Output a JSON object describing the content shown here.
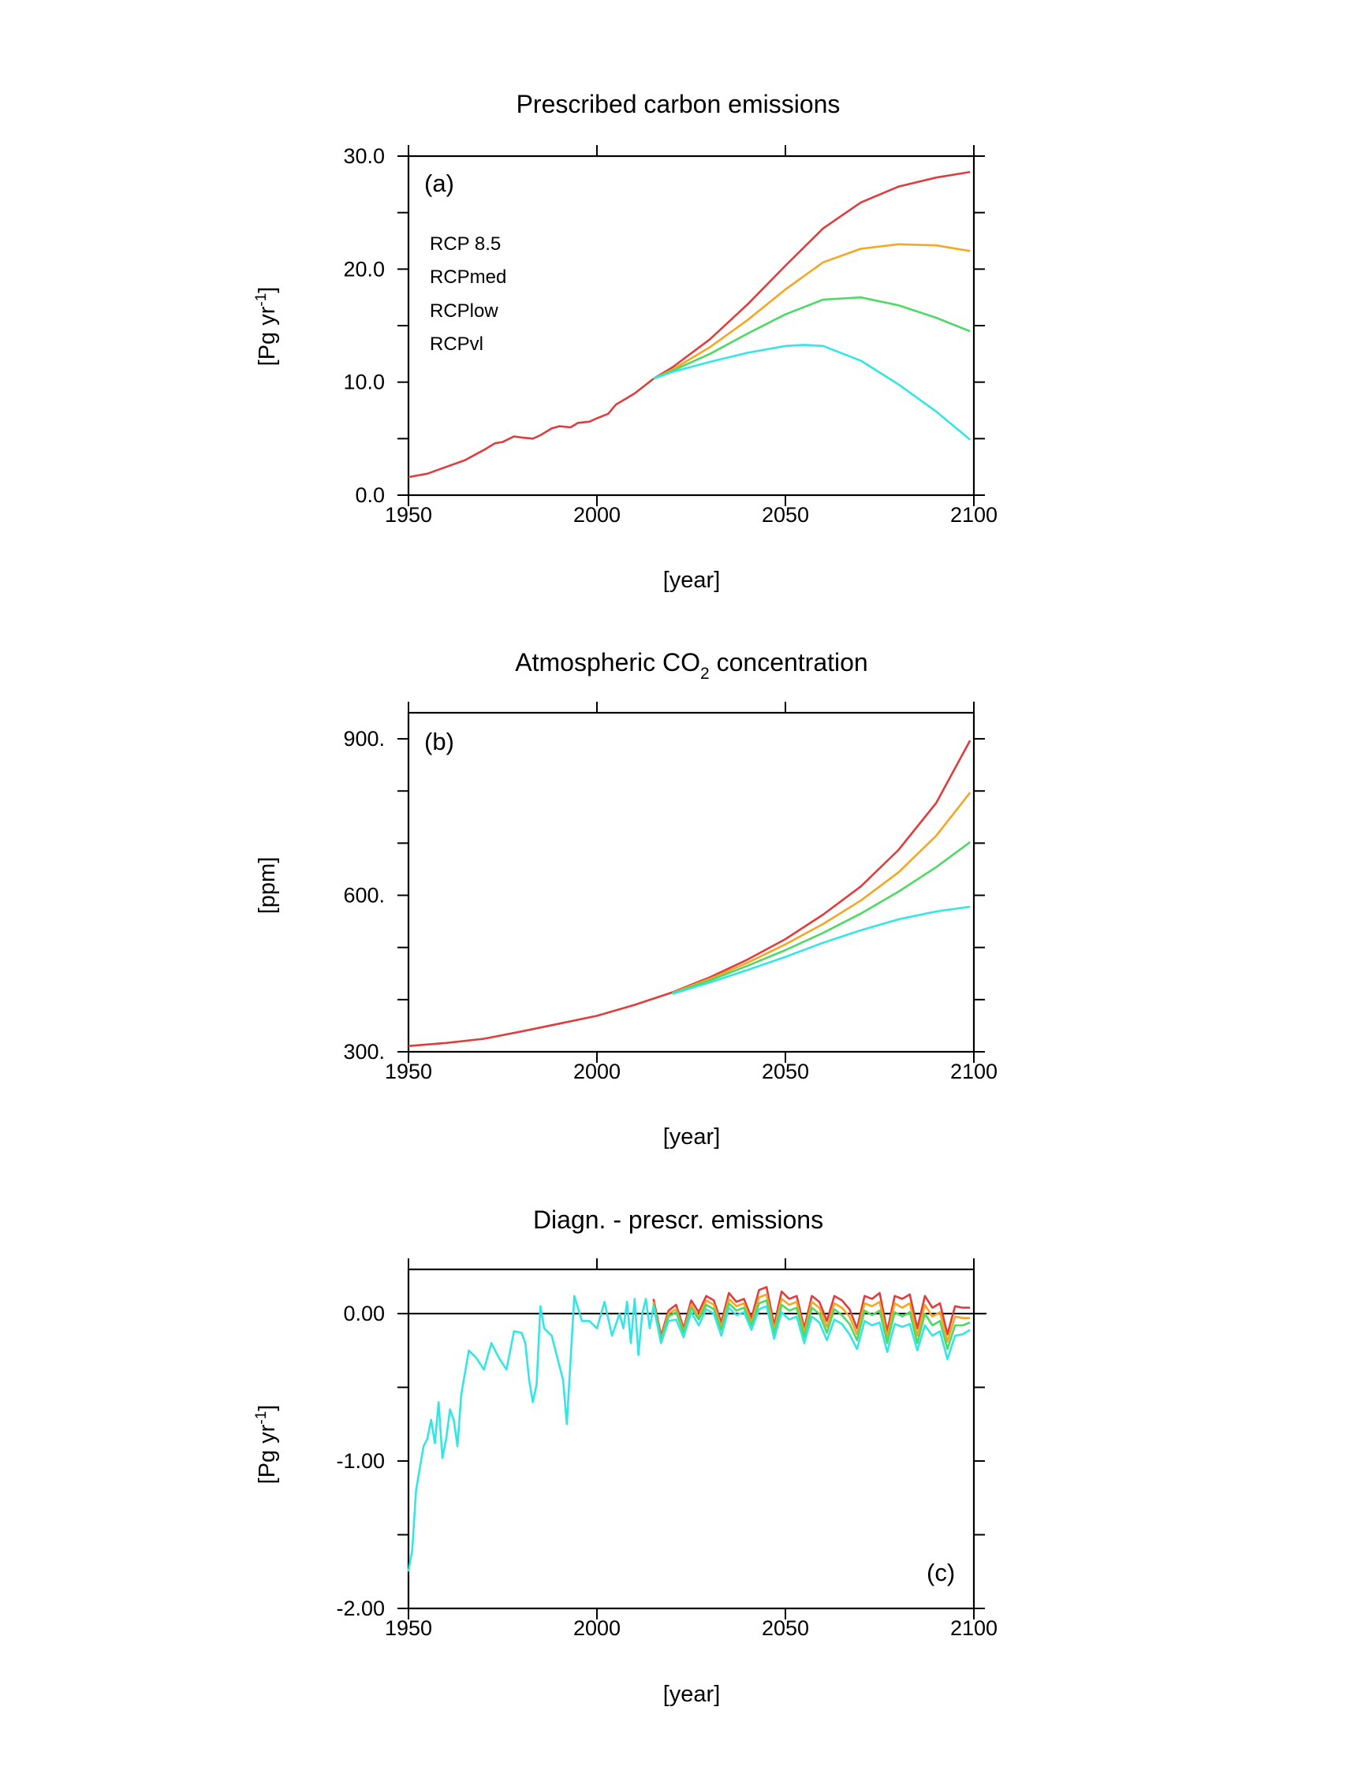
{
  "colors": {
    "rcp85": "#e03c3c",
    "rcpmed": "#f5a623",
    "rcplow": "#4cd964",
    "rcpvl": "#33e6e6",
    "frame": "#000000"
  },
  "chart_data": [
    {
      "type": "line",
      "title": "Prescribed carbon emissions",
      "panel_label": "(a)",
      "xlabel": "[year]",
      "ylabel": "[Pg yr-1]",
      "ylabel_parts": [
        "[Pg yr",
        "-1",
        "]"
      ],
      "xlim": [
        1950,
        2100
      ],
      "ylim": [
        0,
        30
      ],
      "xticks": [
        "1950",
        "2000",
        "2050",
        "2100"
      ],
      "yticks": [
        "0.0",
        "10.0",
        "20.0",
        "30.0"
      ],
      "ytick_values": [
        0,
        10,
        20,
        30
      ],
      "legend": {
        "position": "upper-left",
        "entries": [
          "RCP 8.5",
          "RCPmed",
          "RCPlow",
          "RCPvl"
        ]
      },
      "grid": false,
      "series": [
        {
          "name": "RCP 8.5",
          "x": [
            1950,
            1955,
            1960,
            1965,
            1970,
            1973,
            1975,
            1978,
            1980,
            1983,
            1985,
            1988,
            1990,
            1993,
            1995,
            1998,
            2000,
            2003,
            2005,
            2010,
            2015,
            2020,
            2030,
            2040,
            2050,
            2060,
            2070,
            2080,
            2090,
            2099
          ],
          "y": [
            1.6,
            1.9,
            2.5,
            3.1,
            4.0,
            4.6,
            4.7,
            5.2,
            5.1,
            5.0,
            5.3,
            5.9,
            6.1,
            6.0,
            6.4,
            6.5,
            6.8,
            7.2,
            8.0,
            9.0,
            10.3,
            11.3,
            13.8,
            16.9,
            20.3,
            23.6,
            25.9,
            27.3,
            28.1,
            28.6
          ]
        },
        {
          "name": "RCPmed",
          "x": [
            2015,
            2020,
            2030,
            2040,
            2050,
            2060,
            2070,
            2080,
            2090,
            2099
          ],
          "y": [
            10.3,
            11.1,
            13.1,
            15.5,
            18.2,
            20.6,
            21.8,
            22.2,
            22.1,
            21.6
          ]
        },
        {
          "name": "RCPlow",
          "x": [
            2015,
            2020,
            2030,
            2040,
            2050,
            2060,
            2070,
            2080,
            2090,
            2099
          ],
          "y": [
            10.3,
            11.0,
            12.5,
            14.3,
            16.0,
            17.3,
            17.5,
            16.8,
            15.7,
            14.5
          ]
        },
        {
          "name": "RCPvl",
          "x": [
            2015,
            2020,
            2030,
            2040,
            2050,
            2055,
            2060,
            2070,
            2080,
            2090,
            2099
          ],
          "y": [
            10.3,
            10.9,
            11.8,
            12.6,
            13.2,
            13.3,
            13.2,
            11.9,
            9.8,
            7.4,
            4.9
          ]
        }
      ]
    },
    {
      "type": "line",
      "title": "Atmospheric CO2 concentration",
      "title_parts": [
        "Atmospheric CO",
        "2",
        " concentration"
      ],
      "panel_label": "(b)",
      "xlabel": "[year]",
      "ylabel": "[ppm]",
      "xlim": [
        1950,
        2100
      ],
      "ylim": [
        300,
        950
      ],
      "xticks": [
        "1950",
        "2000",
        "2050",
        "2100"
      ],
      "yticks": [
        "300.",
        "600.",
        "900."
      ],
      "ytick_values": [
        300,
        600,
        900
      ],
      "grid": false,
      "series": [
        {
          "name": "RCP 8.5",
          "x": [
            1950,
            1960,
            1970,
            1980,
            1990,
            2000,
            2010,
            2020,
            2030,
            2040,
            2050,
            2060,
            2070,
            2080,
            2090,
            2099
          ],
          "y": [
            311,
            317,
            325,
            339,
            354,
            369,
            390,
            414,
            443,
            477,
            516,
            563,
            617,
            687,
            777,
            897
          ]
        },
        {
          "name": "RCPmed",
          "x": [
            2020,
            2030,
            2040,
            2050,
            2060,
            2070,
            2080,
            2090,
            2099
          ],
          "y": [
            413,
            440,
            471,
            506,
            545,
            590,
            644,
            714,
            797
          ]
        },
        {
          "name": "RCPlow",
          "x": [
            2020,
            2030,
            2040,
            2050,
            2060,
            2070,
            2080,
            2090,
            2099
          ],
          "y": [
            412,
            437,
            465,
            495,
            528,
            565,
            607,
            654,
            702
          ]
        },
        {
          "name": "RCPvl",
          "x": [
            2020,
            2030,
            2040,
            2050,
            2060,
            2070,
            2080,
            2090,
            2099
          ],
          "y": [
            411,
            433,
            457,
            482,
            509,
            533,
            554,
            569,
            578
          ]
        }
      ]
    },
    {
      "type": "line",
      "title": "Diagn. - prescr. emissions",
      "panel_label": "(c)",
      "xlabel": "[year]",
      "ylabel": "[Pg yr-1]",
      "ylabel_parts": [
        "[Pg yr",
        "-1",
        "]"
      ],
      "xlim": [
        1950,
        2100
      ],
      "ylim": [
        -2.0,
        0.3
      ],
      "xticks": [
        "1950",
        "2000",
        "2050",
        "2100"
      ],
      "yticks": [
        "-2.00",
        "-1.00",
        "0.00"
      ],
      "ytick_values": [
        -2.0,
        -1.0,
        0.0
      ],
      "zero_line": true,
      "grid": false,
      "series": [
        {
          "name": "RCP 8.5",
          "x": [
            2015,
            2017,
            2019,
            2021,
            2023,
            2025,
            2027,
            2029,
            2031,
            2033,
            2035,
            2037,
            2039,
            2041,
            2043,
            2045,
            2047,
            2049,
            2051,
            2053,
            2055,
            2057,
            2059,
            2061,
            2063,
            2065,
            2067,
            2069,
            2071,
            2073,
            2075,
            2077,
            2079,
            2081,
            2083,
            2085,
            2087,
            2089,
            2091,
            2093,
            2095,
            2097,
            2099
          ],
          "y": [
            0.1,
            -0.15,
            0.02,
            0.06,
            -0.1,
            0.09,
            0.01,
            0.12,
            0.09,
            -0.06,
            0.14,
            0.08,
            0.1,
            -0.03,
            0.16,
            0.18,
            -0.08,
            0.15,
            0.1,
            0.12,
            -0.1,
            0.12,
            0.08,
            -0.05,
            0.12,
            0.09,
            0.03,
            -0.1,
            0.12,
            0.1,
            0.14,
            -0.12,
            0.12,
            0.1,
            0.13,
            -0.1,
            0.12,
            0.04,
            0.07,
            -0.14,
            0.05,
            0.04,
            0.04
          ]
        },
        {
          "name": "RCPmed",
          "x": [
            2015,
            2017,
            2019,
            2021,
            2023,
            2025,
            2027,
            2029,
            2031,
            2033,
            2035,
            2037,
            2039,
            2041,
            2043,
            2045,
            2047,
            2049,
            2051,
            2053,
            2055,
            2057,
            2059,
            2061,
            2063,
            2065,
            2067,
            2069,
            2071,
            2073,
            2075,
            2077,
            2079,
            2081,
            2083,
            2085,
            2087,
            2089,
            2091,
            2093,
            2095,
            2097,
            2099
          ],
          "y": [
            0.08,
            -0.17,
            0.0,
            0.03,
            -0.12,
            0.06,
            -0.02,
            0.09,
            0.06,
            -0.09,
            0.1,
            0.05,
            0.07,
            -0.06,
            0.11,
            0.13,
            -0.11,
            0.1,
            0.06,
            0.08,
            -0.13,
            0.08,
            0.04,
            -0.09,
            0.07,
            0.04,
            -0.02,
            -0.14,
            0.07,
            0.05,
            0.08,
            -0.16,
            0.07,
            0.04,
            0.07,
            -0.15,
            0.06,
            -0.02,
            0.01,
            -0.19,
            -0.02,
            -0.03,
            -0.03
          ]
        },
        {
          "name": "RCPlow",
          "x": [
            2015,
            2017,
            2019,
            2021,
            2023,
            2025,
            2027,
            2029,
            2031,
            2033,
            2035,
            2037,
            2039,
            2041,
            2043,
            2045,
            2047,
            2049,
            2051,
            2053,
            2055,
            2057,
            2059,
            2061,
            2063,
            2065,
            2067,
            2069,
            2071,
            2073,
            2075,
            2077,
            2079,
            2081,
            2083,
            2085,
            2087,
            2089,
            2091,
            2093,
            2095,
            2097,
            2099
          ],
          "y": [
            0.07,
            -0.18,
            -0.02,
            0.01,
            -0.13,
            0.04,
            -0.04,
            0.06,
            0.03,
            -0.11,
            0.07,
            0.02,
            0.04,
            -0.08,
            0.07,
            0.09,
            -0.14,
            0.06,
            0.02,
            0.04,
            -0.16,
            0.04,
            0.0,
            -0.13,
            0.03,
            -0.01,
            -0.07,
            -0.18,
            0.02,
            -0.01,
            0.02,
            -0.2,
            0.01,
            -0.02,
            0.01,
            -0.2,
            0.0,
            -0.08,
            -0.05,
            -0.24,
            -0.08,
            -0.08,
            -0.06
          ]
        },
        {
          "name": "RCPvl",
          "x": [
            1950,
            1951,
            1952,
            1953,
            1954,
            1955,
            1956,
            1957,
            1958,
            1959,
            1960,
            1961,
            1962,
            1963,
            1964,
            1966,
            1968,
            1970,
            1972,
            1974,
            1976,
            1978,
            1980,
            1981,
            1982,
            1983,
            1984,
            1985,
            1986,
            1988,
            1990,
            1991,
            1992,
            1994,
            1996,
            1998,
            2000,
            2002,
            2004,
            2006,
            2007,
            2008,
            2009,
            2010,
            2011,
            2012,
            2013,
            2014,
            2015,
            2017,
            2019,
            2021,
            2023,
            2025,
            2027,
            2029,
            2031,
            2033,
            2035,
            2037,
            2039,
            2041,
            2043,
            2045,
            2047,
            2049,
            2051,
            2053,
            2055,
            2057,
            2059,
            2061,
            2063,
            2065,
            2067,
            2069,
            2071,
            2073,
            2075,
            2077,
            2079,
            2081,
            2083,
            2085,
            2087,
            2089,
            2091,
            2093,
            2095,
            2097,
            2099
          ],
          "y": [
            -1.75,
            -1.6,
            -1.2,
            -1.05,
            -0.9,
            -0.85,
            -0.72,
            -0.88,
            -0.6,
            -0.98,
            -0.85,
            -0.65,
            -0.72,
            -0.9,
            -0.55,
            -0.25,
            -0.3,
            -0.38,
            -0.2,
            -0.3,
            -0.38,
            -0.12,
            -0.13,
            -0.2,
            -0.45,
            -0.6,
            -0.48,
            0.05,
            -0.1,
            -0.15,
            -0.35,
            -0.45,
            -0.75,
            0.12,
            -0.05,
            -0.05,
            -0.1,
            0.08,
            -0.15,
            0.0,
            -0.1,
            0.08,
            -0.2,
            0.1,
            -0.28,
            0.0,
            0.1,
            -0.1,
            0.05,
            -0.2,
            -0.05,
            -0.04,
            -0.16,
            0.01,
            -0.08,
            0.03,
            0.0,
            -0.15,
            0.04,
            -0.01,
            0.01,
            -0.11,
            0.03,
            0.05,
            -0.17,
            0.01,
            -0.04,
            -0.02,
            -0.2,
            -0.02,
            -0.06,
            -0.18,
            -0.04,
            -0.07,
            -0.14,
            -0.24,
            -0.05,
            -0.08,
            -0.06,
            -0.26,
            -0.07,
            -0.09,
            -0.07,
            -0.25,
            -0.08,
            -0.15,
            -0.12,
            -0.31,
            -0.15,
            -0.14,
            -0.11
          ]
        }
      ]
    }
  ]
}
